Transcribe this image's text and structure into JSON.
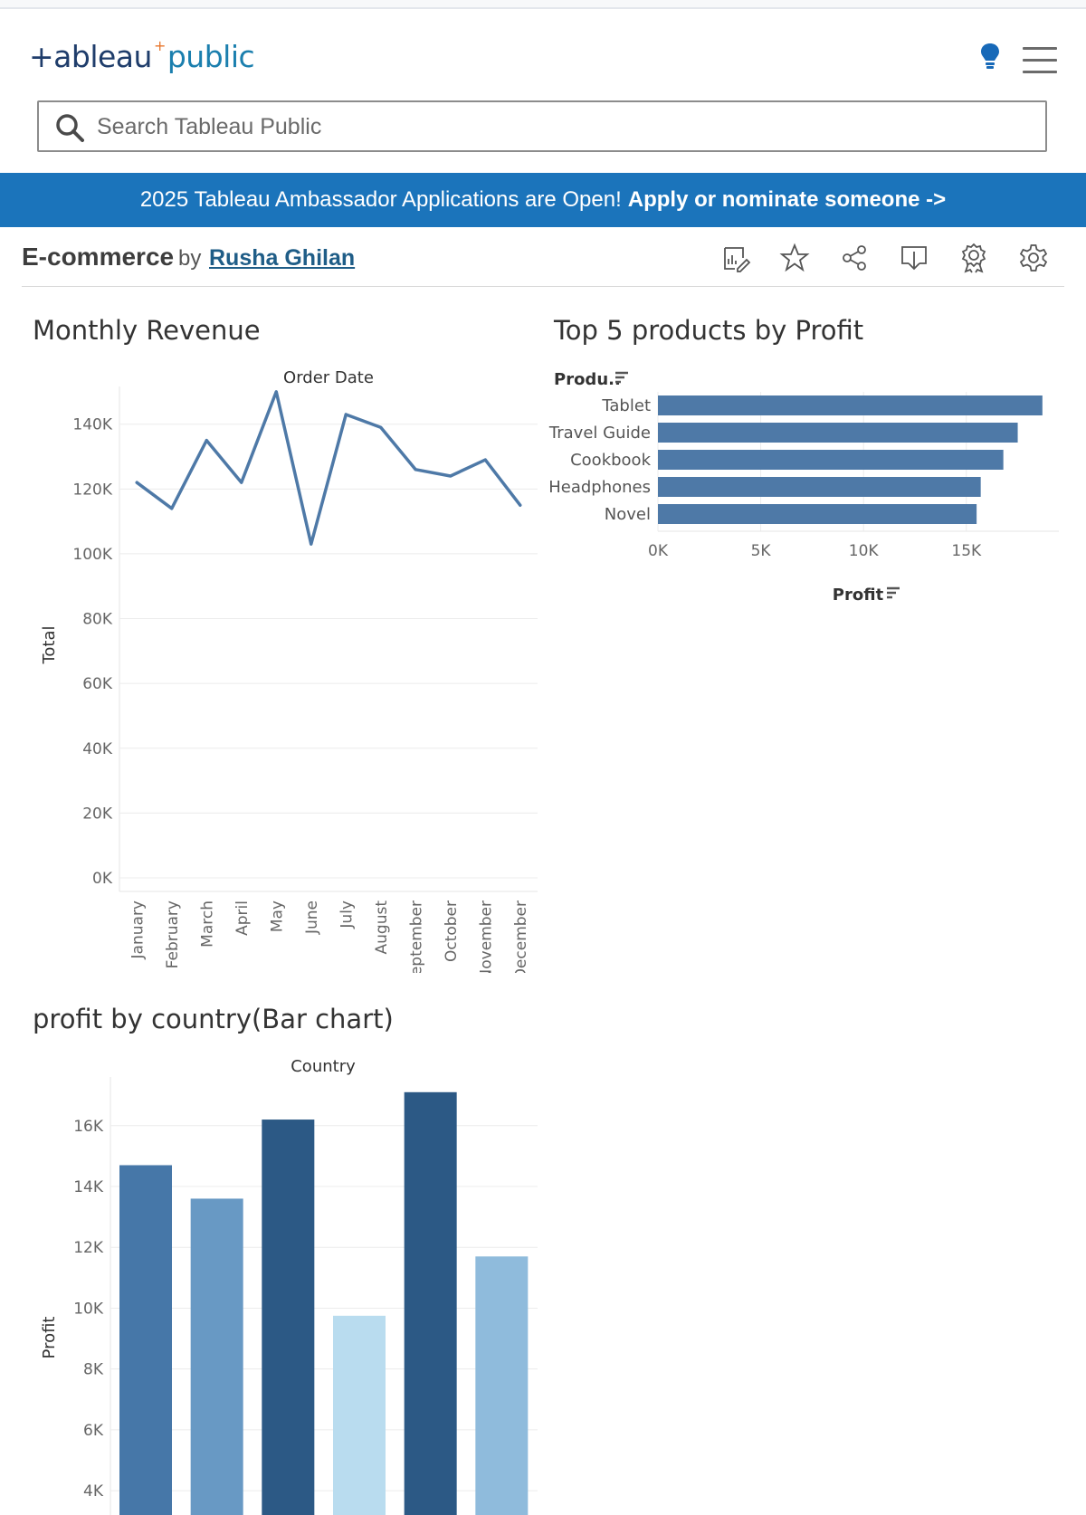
{
  "header": {
    "logo_part1": "+ableau",
    "logo_plus": "+",
    "logo_part2": "public",
    "bulb_icon": "lightbulb-icon",
    "menu_icon": "hamburger-menu-icon"
  },
  "search": {
    "placeholder": "Search Tableau Public",
    "icon": "search-icon"
  },
  "banner": {
    "text": "2025 Tableau Ambassador Applications are Open!",
    "link": "Apply or nominate someone ->",
    "color": "#1b74bb"
  },
  "viz": {
    "title": "E-commerce",
    "by": "by",
    "author": "Rusha Ghilan",
    "toolbar": [
      "edit-viz-icon",
      "favorite-star-icon",
      "share-icon",
      "download-icon",
      "award-icon",
      "settings-gear-icon"
    ]
  },
  "sheets": {
    "monthly_revenue": "Monthly Revenue",
    "top_products": "Top 5 products by Profit",
    "profit_by_country": "profit by country(Bar chart)"
  },
  "chart_data": [
    {
      "type": "line",
      "title": "Monthly Revenue",
      "header": "Order Date",
      "ylabel": "Total",
      "x": [
        "January",
        "February",
        "March",
        "April",
        "May",
        "June",
        "July",
        "August",
        "September",
        "October",
        "November",
        "December"
      ],
      "values": [
        122000,
        114000,
        135000,
        122000,
        150000,
        103000,
        143000,
        139000,
        126000,
        124000,
        129000,
        115000
      ],
      "yticks": [
        "0K",
        "20K",
        "40K",
        "60K",
        "80K",
        "100K",
        "120K",
        "140K"
      ],
      "ylim": [
        0,
        155000
      ],
      "color": "#4e79a7",
      "grid": true
    },
    {
      "type": "bar",
      "orientation": "horizontal",
      "title": "Top 5 products by Profit",
      "row_header": "Produ..",
      "xlabel": "Profit",
      "categories": [
        "Tablet",
        "Travel Guide",
        "Cookbook",
        "Headphones",
        "Novel"
      ],
      "values": [
        18700,
        17500,
        16800,
        15700,
        15500
      ],
      "xticks": [
        "0K",
        "5K",
        "10K",
        "15K"
      ],
      "xlim": [
        0,
        19500
      ],
      "color": "#4e79a7"
    },
    {
      "type": "bar",
      "title": "profit by country(Bar chart)",
      "header": "Country",
      "ylabel": "Profit",
      "values": [
        14700,
        13600,
        16200,
        9750,
        17100,
        11700
      ],
      "colors": [
        "#4677a8",
        "#6899c4",
        "#2c5985",
        "#b9dcef",
        "#2c5985",
        "#8fbbdc"
      ],
      "yticks": [
        "4K",
        "6K",
        "8K",
        "10K",
        "12K",
        "14K",
        "16K"
      ],
      "ylim": [
        3200,
        17600
      ],
      "grid": true
    }
  ]
}
